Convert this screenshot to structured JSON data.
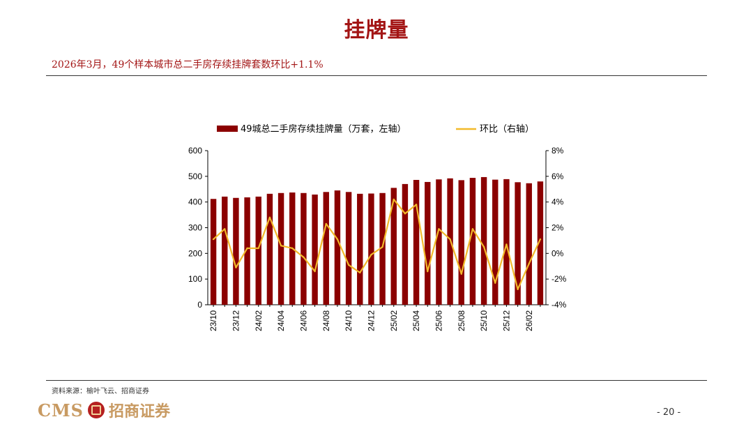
{
  "header": {
    "title": "挂牌量",
    "subtitle": "2026年3月，49个样本城市总二手房存续挂牌套数环比+1.1%"
  },
  "footer": {
    "source": "资料来源：榆叶飞云、招商证券",
    "logo_latin": "CMS",
    "logo_chinese": "招商证券",
    "page_number": "- 20 -"
  },
  "colors": {
    "bar": "#8b0000",
    "line": "#f2b92a",
    "accent": "#a31515"
  },
  "chart_data": {
    "type": "bar",
    "legend": [
      "49城总二手房存续挂牌量（万套，左轴）",
      "环比（右轴）"
    ],
    "categories": [
      "23/10",
      "23/11",
      "23/12",
      "24/01",
      "24/02",
      "24/03",
      "24/04",
      "24/05",
      "24/06",
      "24/07",
      "24/08",
      "24/09",
      "24/10",
      "24/11",
      "24/12",
      "25/01",
      "25/02",
      "25/03",
      "25/04",
      "25/05",
      "25/06",
      "25/07",
      "25/08",
      "25/09",
      "25/10",
      "25/11",
      "25/12",
      "26/01",
      "26/02",
      "26/03"
    ],
    "tick_labels": [
      "23/10",
      "23/12",
      "24/02",
      "24/04",
      "24/06",
      "24/08",
      "24/10",
      "24/12",
      "25/02",
      "25/04",
      "25/06",
      "25/08",
      "25/10",
      "25/12",
      "26/02"
    ],
    "series": [
      {
        "name": "49城总二手房存续挂牌量（万套，左轴）",
        "type": "bar",
        "axis": "left",
        "values": [
          412,
          421,
          416,
          418,
          421,
          432,
          435,
          437,
          435,
          429,
          439,
          445,
          439,
          432,
          433,
          435,
          455,
          470,
          486,
          478,
          488,
          492,
          485,
          494,
          497,
          487,
          489,
          477,
          473,
          480
        ]
      },
      {
        "name": "环比（右轴）",
        "type": "line",
        "axis": "right",
        "values": [
          1.1,
          1.9,
          -1.1,
          0.4,
          0.4,
          2.8,
          0.6,
          0.4,
          -0.3,
          -1.4,
          2.3,
          1.1,
          -0.9,
          -1.5,
          -0.1,
          0.5,
          4.2,
          3.1,
          3.8,
          -1.4,
          1.9,
          1.1,
          -1.6,
          1.9,
          0.5,
          -2.3,
          0.7,
          -2.8,
          -0.8,
          1.1
        ]
      }
    ],
    "y_left": {
      "min": 0,
      "max": 600,
      "ticks": [
        0,
        100,
        200,
        300,
        400,
        500,
        600
      ]
    },
    "y_right": {
      "min": -4,
      "max": 8,
      "ticks": [
        "-4%",
        "-2%",
        "0%",
        "2%",
        "4%",
        "6%",
        "8%"
      ]
    },
    "legend_position": "top",
    "grid": false
  }
}
